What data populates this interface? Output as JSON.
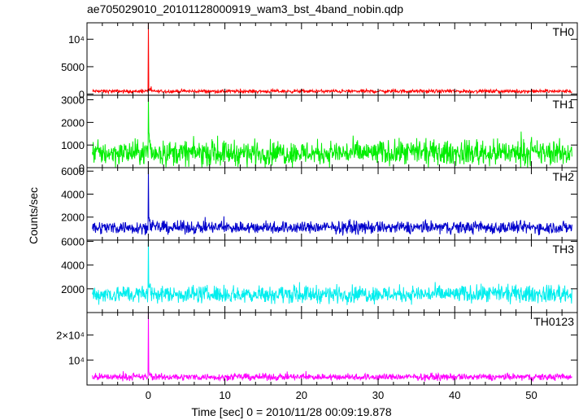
{
  "chart_data": {
    "type": "line",
    "title": "ae705029010_20101128000919_wam3_bst_4band_nobin.qdp",
    "xlabel": "Time [sec] 0 = 2010/11/28 00:09:19.878",
    "ylabel": "Counts/sec",
    "xlim": [
      -8,
      56
    ],
    "xticks": [
      "0",
      "10",
      "20",
      "30",
      "40",
      "50"
    ],
    "panels": [
      {
        "name": "TH0",
        "color": "#ff0000",
        "ylim": [
          -200,
          13000
        ],
        "yticks": [
          {
            "value": 0,
            "label": "0"
          },
          {
            "value": 5000,
            "label": "5000"
          },
          {
            "value": 10000,
            "label": "10⁴"
          }
        ],
        "baseline": 520,
        "noise": 260,
        "spike_peak": 13000
      },
      {
        "name": "TH1",
        "color": "#00ee00",
        "ylim": [
          0,
          3200
        ],
        "yticks": [
          {
            "value": 0,
            "label": "0"
          },
          {
            "value": 1000,
            "label": "1000"
          },
          {
            "value": 2000,
            "label": "2000"
          },
          {
            "value": 3000,
            "label": "3000"
          }
        ],
        "baseline": 650,
        "noise": 450,
        "spike_peak": 3100
      },
      {
        "name": "TH2",
        "color": "#0000cc",
        "ylim": [
          0,
          6300
        ],
        "yticks": [
          {
            "value": 2000,
            "label": "2000"
          },
          {
            "value": 4000,
            "label": "4000"
          },
          {
            "value": 6000,
            "label": "6000"
          }
        ],
        "baseline": 1100,
        "noise": 450,
        "spike_peak": 6300
      },
      {
        "name": "TH3",
        "color": "#00eeee",
        "ylim": [
          0,
          6100
        ],
        "yticks": [
          {
            "value": 2000,
            "label": "2000"
          },
          {
            "value": 4000,
            "label": "4000"
          },
          {
            "value": 6000,
            "label": "6000"
          }
        ],
        "baseline": 1550,
        "noise": 600,
        "spike_peak": 6100
      },
      {
        "name": "TH0123",
        "color": "#ff00ff",
        "ylim": [
          0,
          29000
        ],
        "yticks": [
          {
            "value": 10000,
            "label": "10⁴"
          },
          {
            "value": 20000,
            "label": "2×10⁴"
          }
        ],
        "baseline": 3200,
        "noise": 1100,
        "spike_peak": 29000
      }
    ],
    "grid": false,
    "legend": "none"
  }
}
